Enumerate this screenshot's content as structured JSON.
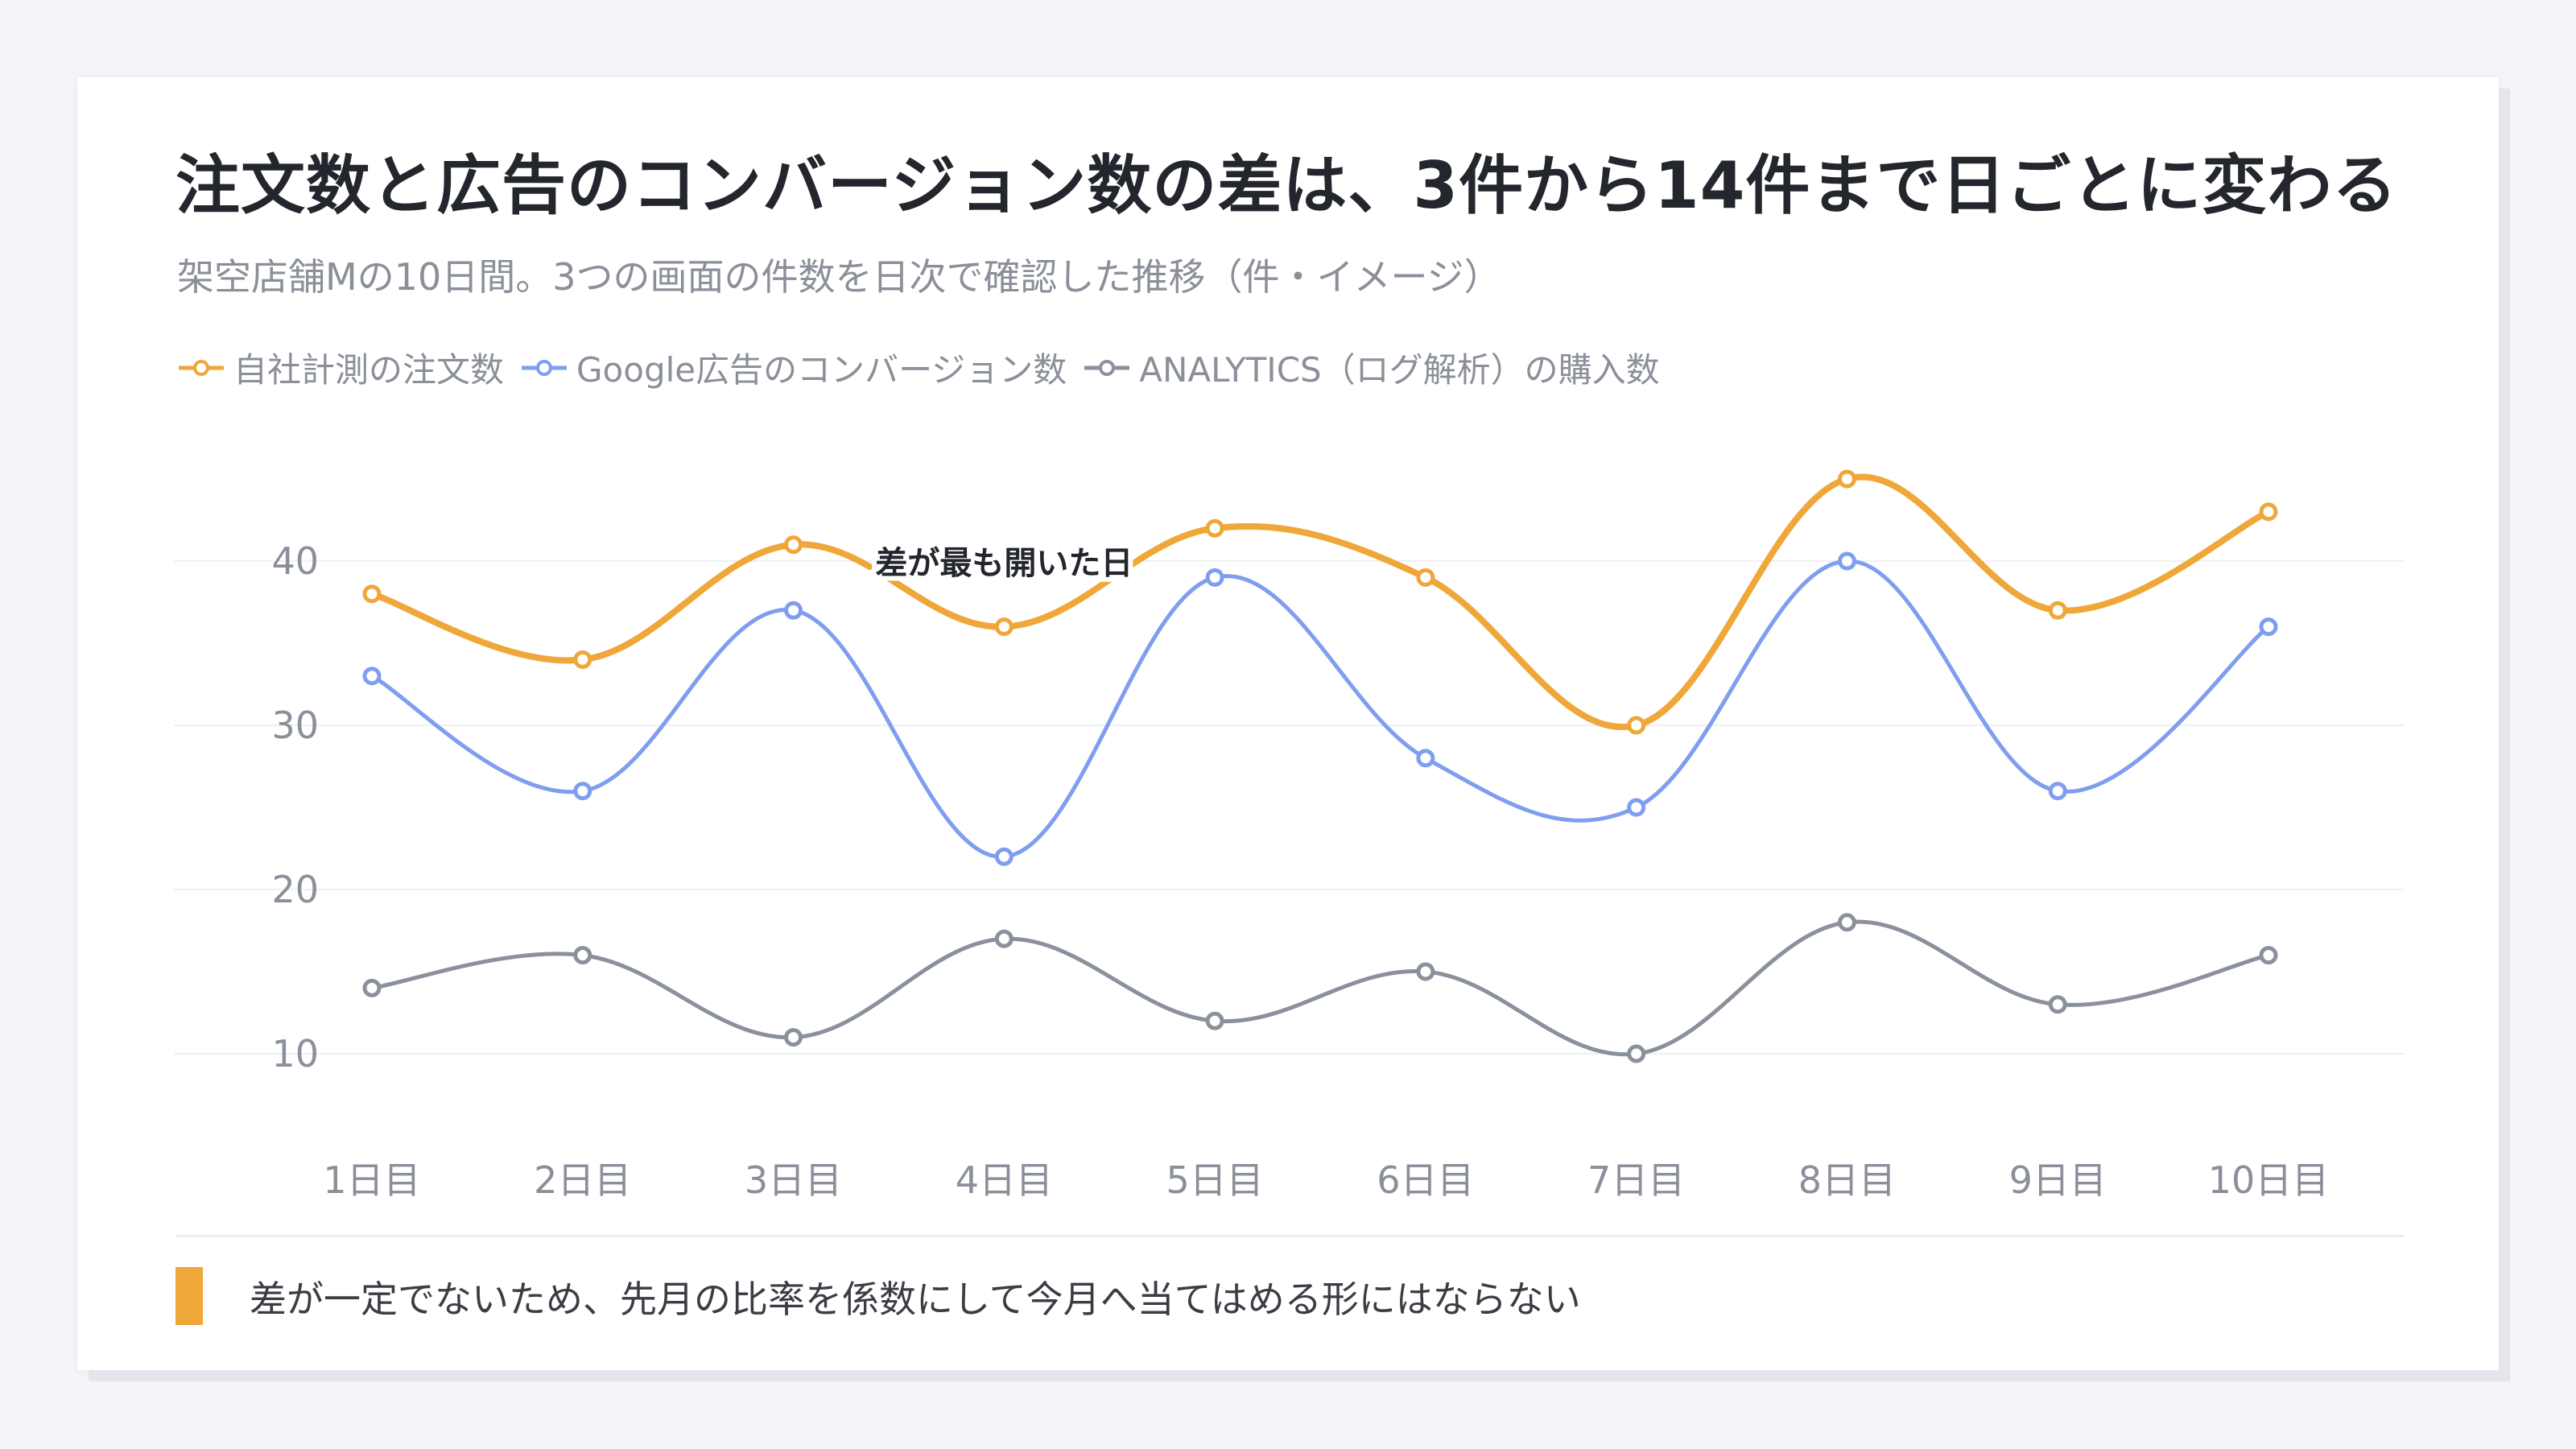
{
  "title": "注文数と広告のコンバージョン数の差は、3件から14件まで日ごとに変わる",
  "subtitle": "架空店舗Mの10日間。3つの画面の件数を日次で確認した推移（件・イメージ）",
  "footer_note": "差が一定でないため、先月の比率を係数にして今月へ当てはめる形にはならない",
  "colors": {
    "accent": "#f0a73a"
  },
  "chart_data": {
    "type": "line",
    "smooth": true,
    "x": [
      "1日目",
      "2日目",
      "3日目",
      "4日目",
      "5日目",
      "6日目",
      "7日目",
      "8日目",
      "9日目",
      "10日目"
    ],
    "ylim": [
      10,
      45
    ],
    "yticks": [
      10,
      20,
      30,
      40
    ],
    "grid": true,
    "legend_position": "top-left",
    "series": [
      {
        "name": "自社計測の注文数",
        "color": "#f0a73a",
        "values": [
          38,
          34,
          41,
          36,
          42,
          39,
          30,
          45,
          37,
          43
        ]
      },
      {
        "name": "Google広告のコンバージョン数",
        "color": "#7f9ef0",
        "values": [
          33,
          26,
          37,
          22,
          39,
          28,
          25,
          40,
          26,
          36
        ]
      },
      {
        "name": "ANALYTICS（ログ解析）の購入数",
        "color": "#8a919c",
        "values": [
          14,
          16,
          11,
          17,
          12,
          15,
          10,
          18,
          13,
          16
        ]
      }
    ],
    "annotations": [
      {
        "text": "差が最も開いた日",
        "x": "4日目",
        "y": 40
      }
    ]
  }
}
